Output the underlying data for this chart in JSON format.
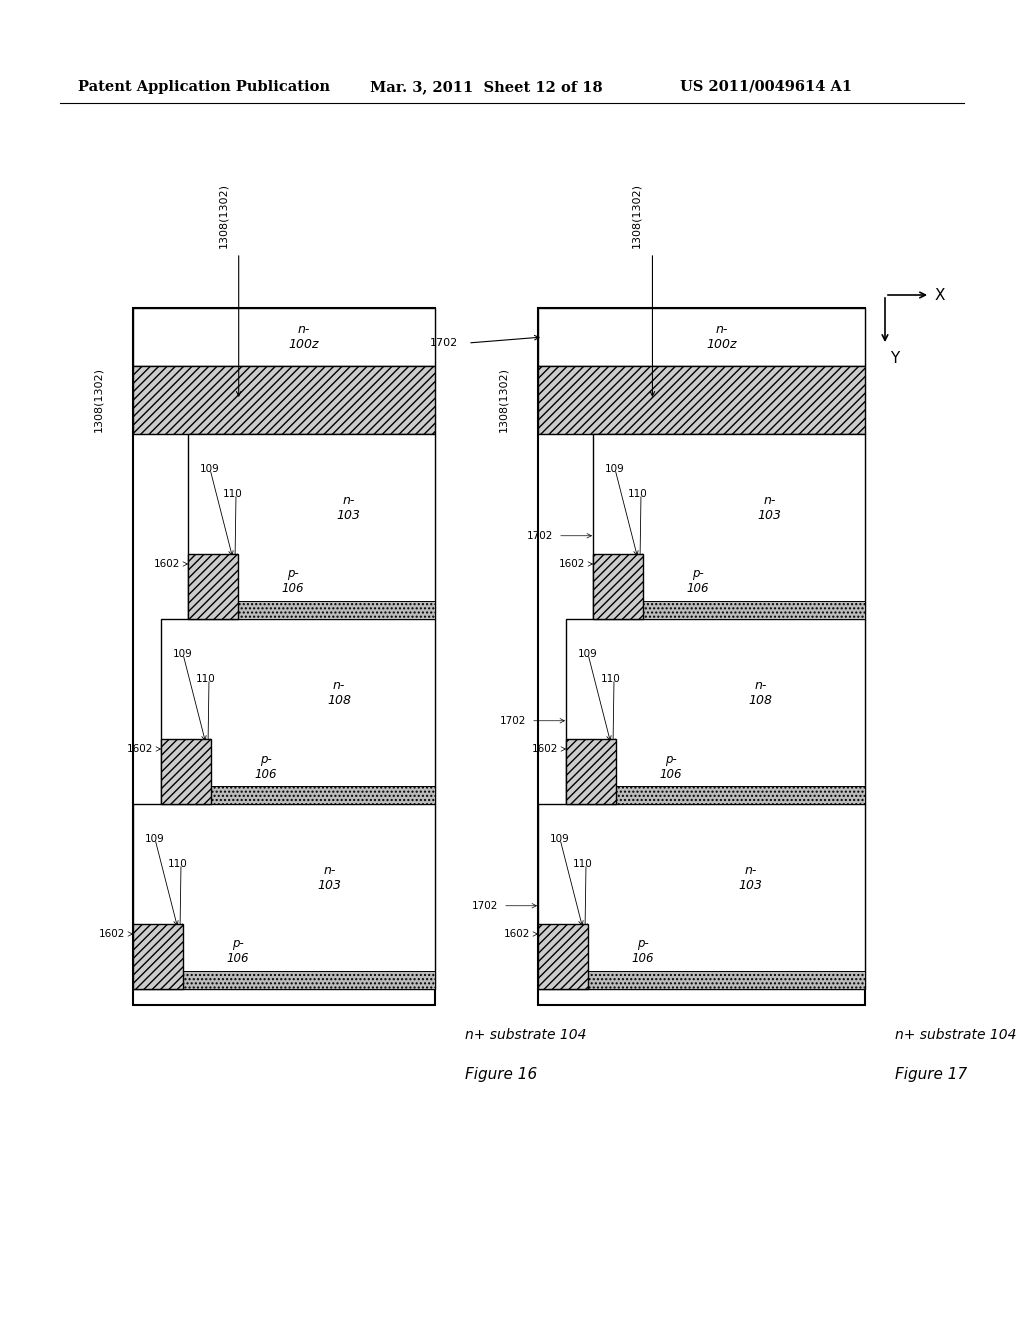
{
  "header_left": "Patent Application Publication",
  "header_mid": "Mar. 3, 2011  Sheet 12 of 18",
  "header_right": "US 2011/0049614 A1",
  "fig16_caption": "Figure 16",
  "fig17_caption": "Figure 17",
  "background": "#ffffff",
  "fig16_label_top": "1308(1302)",
  "fig17_label_top": "1308(1302)",
  "fig17_label_1702_top": "1702",
  "label_100z": "n-\n100z",
  "label_103_1": "n-\n103",
  "label_108": "n-\n108",
  "label_103_2": "n-\n103",
  "label_p106": "p-\n106",
  "label_109": "109",
  "label_110": "110",
  "label_1602": "1602",
  "label_1702": "1702",
  "label_substrate": "n+ substrate 104"
}
